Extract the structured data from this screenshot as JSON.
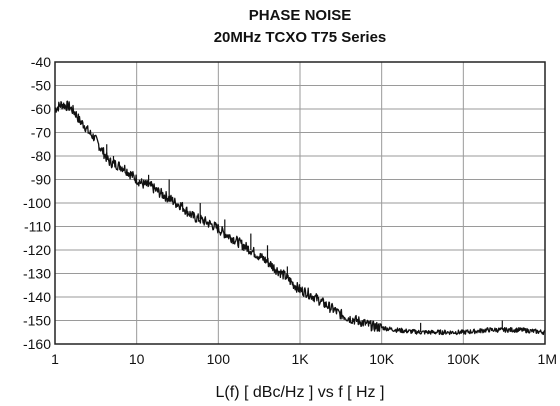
{
  "chart_data": {
    "type": "line",
    "title": "PHASE NOISE",
    "subtitle": "20MHz TCXO T75 Series",
    "xlabel": "L(f) [ dBc/Hz ]  vs  f [ Hz ]",
    "ylabel": "",
    "x_scale": "log",
    "xlim": [
      1,
      1000000
    ],
    "ylim": [
      -160,
      -40
    ],
    "grid": true,
    "x_ticks": [
      1,
      10,
      100,
      1000,
      10000,
      100000,
      1000000
    ],
    "x_tick_labels": [
      "1",
      "10",
      "100",
      "1K",
      "10K",
      "100K",
      "1M"
    ],
    "y_ticks": [
      -40,
      -50,
      -60,
      -70,
      -80,
      -90,
      -100,
      -110,
      -120,
      -130,
      -140,
      -150,
      -160
    ],
    "y_tick_labels": [
      "-40",
      "-50",
      "-60",
      "-70",
      "-80",
      "-90",
      "-100",
      "-110",
      "-120",
      "-130",
      "-140",
      "-150",
      "-160"
    ],
    "line_color": "#111111",
    "grid_color": "#9a9a9a",
    "series": [
      {
        "x": [
          1,
          1.2,
          1.5,
          1.8,
          2,
          2.3,
          2.6,
          3,
          3.4,
          4,
          4.5,
          5,
          6,
          7,
          8,
          10,
          12,
          15,
          18,
          20,
          25,
          30,
          35,
          40,
          50,
          60,
          70,
          80,
          90,
          100,
          120,
          150,
          200,
          250,
          300,
          400,
          500,
          600,
          700,
          800,
          1000,
          1200,
          1500,
          2000,
          2500,
          3000,
          4000,
          5000,
          6000,
          7000,
          8000,
          10000,
          12000,
          15000,
          20000,
          30000,
          40000,
          50000,
          70000,
          100000,
          150000,
          200000,
          300000,
          500000,
          700000,
          1000000
        ],
        "y": [
          -60,
          -58,
          -59,
          -62,
          -65,
          -67,
          -70,
          -72,
          -75,
          -79,
          -82,
          -83,
          -84,
          -85,
          -87,
          -90,
          -92,
          -93,
          -95,
          -96,
          -98,
          -100,
          -101,
          -103,
          -106,
          -107,
          -108,
          -109,
          -110,
          -111,
          -113,
          -115,
          -118,
          -120,
          -122,
          -125,
          -128,
          -130,
          -132,
          -134,
          -137,
          -138,
          -140,
          -143,
          -145,
          -147,
          -149,
          -150,
          -151,
          -152,
          -152.5,
          -153,
          -153.5,
          -154,
          -154.5,
          -155,
          -155,
          -155,
          -155,
          -155,
          -154.5,
          -154,
          -154,
          -154,
          -154.5,
          -155
        ]
      }
    ],
    "spikes": [
      {
        "x": 4.3,
        "y": -75
      },
      {
        "x": 5.2,
        "y": -80
      },
      {
        "x": 14,
        "y": -88
      },
      {
        "x": 25,
        "y": -90
      },
      {
        "x": 60,
        "y": -100
      },
      {
        "x": 120,
        "y": -107
      },
      {
        "x": 250,
        "y": -113
      },
      {
        "x": 400,
        "y": -118
      },
      {
        "x": 700,
        "y": -127
      },
      {
        "x": 30000,
        "y": -151
      },
      {
        "x": 300000,
        "y": -150
      }
    ]
  }
}
